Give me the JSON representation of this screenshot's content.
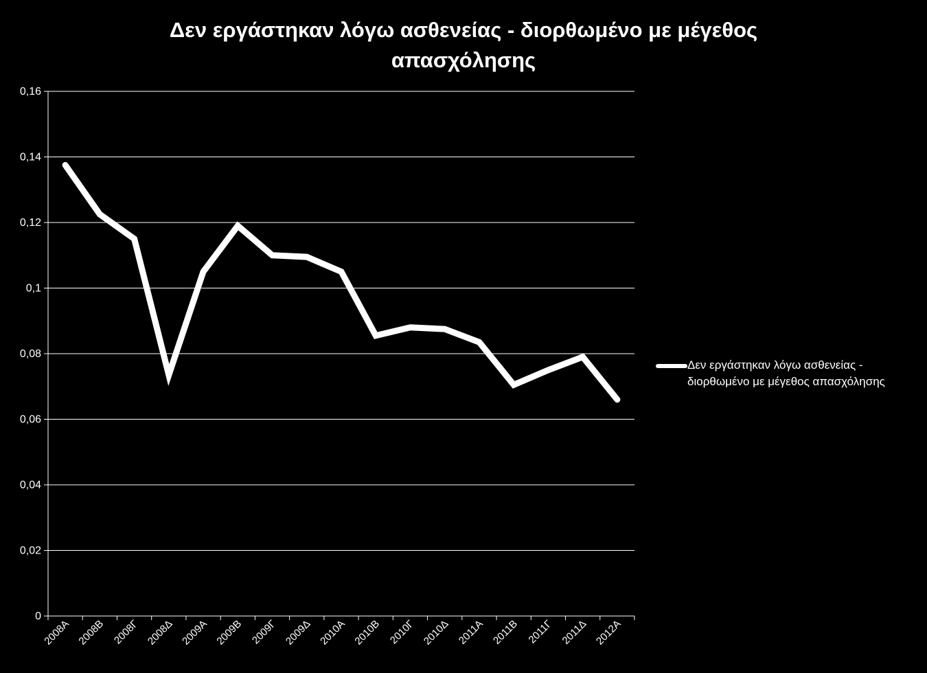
{
  "chart_data": {
    "type": "line",
    "title": "Δεν εργάστηκαν λόγω ασθενείας - διορθωμένο με μέγεθος απασχόλησης",
    "xlabel": "",
    "ylabel": "",
    "ylim": [
      0,
      0.16
    ],
    "yticks": [
      "0",
      "0,02",
      "0,04",
      "0,06",
      "0,08",
      "0,1",
      "0,12",
      "0,14",
      "0,16"
    ],
    "categories": [
      "2008Α",
      "2008Β",
      "2008Γ",
      "2008Δ",
      "2009Α",
      "2009Β",
      "2009Γ",
      "2009Δ",
      "2010Α",
      "2010Β",
      "2010Γ",
      "2010Δ",
      "2011Α",
      "2011Β",
      "2011Γ",
      "2011Δ",
      "2012Α"
    ],
    "series": [
      {
        "name": "Δεν εργάστηκαν λόγω ασθενείας - διορθωμένο με μέγεθος απασχόλησης",
        "color": "#ffffff",
        "values": [
          0.1375,
          0.1225,
          0.115,
          0.0735,
          0.105,
          0.119,
          0.11,
          0.1095,
          0.105,
          0.0855,
          0.088,
          0.0875,
          0.0835,
          0.0705,
          0.075,
          0.079,
          0.066
        ]
      }
    ],
    "grid": true,
    "legend_position": "right",
    "background": "#000000",
    "text_color": "#ffffff"
  }
}
